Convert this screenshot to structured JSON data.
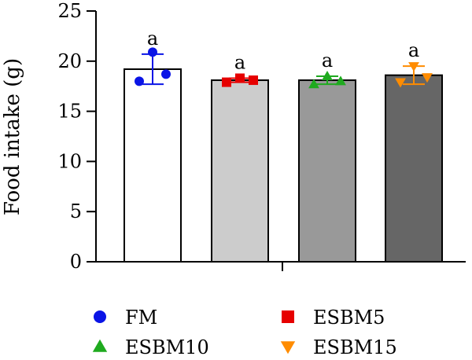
{
  "chart_data": {
    "type": "bar",
    "ylabel": "Food intake (g)",
    "ylim": [
      0,
      25
    ],
    "yticks": [
      0,
      5,
      10,
      15,
      20,
      25
    ],
    "grid": false,
    "legend_position": "bottom",
    "categories": [
      "FM",
      "ESBM5",
      "ESBM10",
      "ESBM15"
    ],
    "series": [
      {
        "name": "FM",
        "mean": 19.2,
        "sd": 1.5,
        "points": [
          18.0,
          20.9,
          18.7
        ],
        "bar_color": "#ffffff",
        "marker": "circle",
        "marker_color": "#0a14e6",
        "significance": "a"
      },
      {
        "name": "ESBM5",
        "mean": 18.1,
        "sd": 0.2,
        "points": [
          17.9,
          18.3,
          18.1
        ],
        "bar_color": "#cccccc",
        "marker": "square",
        "marker_color": "#e60000",
        "significance": "a"
      },
      {
        "name": "ESBM10",
        "mean": 18.1,
        "sd": 0.4,
        "points": [
          17.7,
          18.5,
          18.0
        ],
        "bar_color": "#999999",
        "marker": "triangle-up",
        "marker_color": "#1faa1f",
        "significance": "a"
      },
      {
        "name": "ESBM15",
        "mean": 18.6,
        "sd": 0.9,
        "points": [
          17.9,
          19.5,
          18.4
        ],
        "bar_color": "#666666",
        "marker": "triangle-down",
        "marker_color": "#ff8c00",
        "significance": "a"
      }
    ]
  }
}
